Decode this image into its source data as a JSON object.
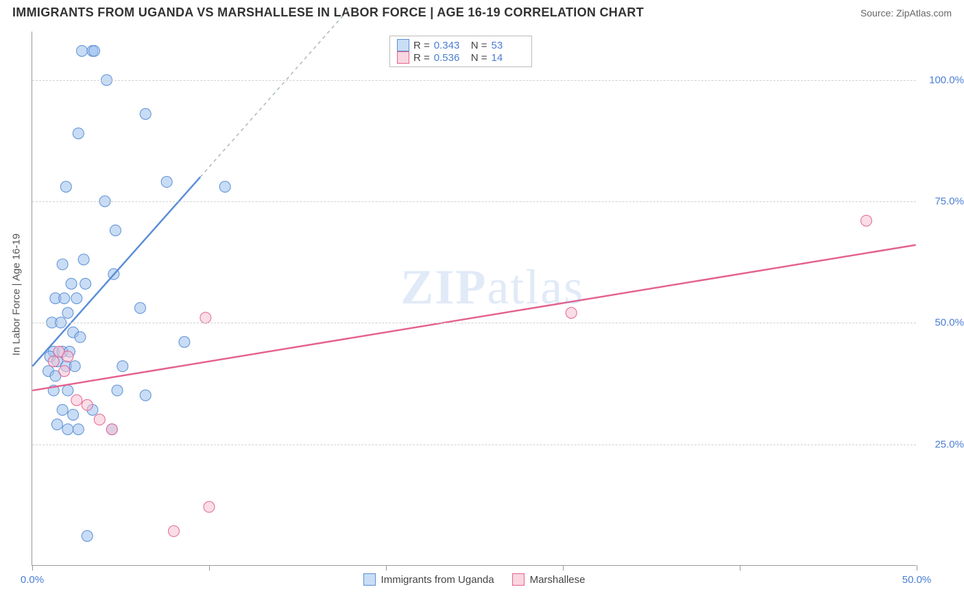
{
  "header": {
    "title": "IMMIGRANTS FROM UGANDA VS MARSHALLESE IN LABOR FORCE | AGE 16-19 CORRELATION CHART",
    "source_label": "Source: ZipAtlas.com"
  },
  "chart": {
    "type": "scatter",
    "y_axis_label": "In Labor Force | Age 16-19",
    "xlim": [
      0,
      50
    ],
    "ylim": [
      0,
      110
    ],
    "xticks": [
      0,
      10,
      20,
      30,
      40,
      50
    ],
    "xtick_labels": {
      "0": "0.0%",
      "50": "50.0%"
    },
    "yticks": [
      25,
      50,
      75,
      100
    ],
    "ytick_labels": {
      "25": "25.0%",
      "50": "50.0%",
      "75": "75.0%",
      "100": "100.0%"
    },
    "grid_color": "#d0d0d0",
    "axis_color": "#999999",
    "tick_label_color": "#4a7dd4",
    "background_color": "#ffffff",
    "marker_radius": 8,
    "marker_opacity": 0.55,
    "line_width": 2.5,
    "watermark_text": "ZIPatlas",
    "series": [
      {
        "id": "uganda",
        "label": "Immigrants from Uganda",
        "color_fill": "#9bc0ec",
        "color_stroke": "#5a8ed6",
        "swatch_fill": "#c9def5",
        "swatch_stroke": "#5a8ed6",
        "r": "0.343",
        "n": "53",
        "trend": {
          "x1": 0,
          "y1": 41,
          "x2": 9.5,
          "y2": 80,
          "dash_to_x": 18,
          "dash_to_y": 115
        },
        "points": [
          [
            2.8,
            106
          ],
          [
            3.4,
            106
          ],
          [
            3.5,
            106
          ],
          [
            4.2,
            100
          ],
          [
            6.4,
            93
          ],
          [
            2.6,
            89
          ],
          [
            1.9,
            78
          ],
          [
            4.1,
            75
          ],
          [
            7.6,
            79
          ],
          [
            10.9,
            78
          ],
          [
            4.7,
            69
          ],
          [
            2.9,
            63
          ],
          [
            4.6,
            60
          ],
          [
            1.7,
            62
          ],
          [
            2.2,
            58
          ],
          [
            3.0,
            58
          ],
          [
            1.3,
            55
          ],
          [
            1.8,
            55
          ],
          [
            2.5,
            55
          ],
          [
            2.0,
            52
          ],
          [
            6.1,
            53
          ],
          [
            1.1,
            50
          ],
          [
            1.6,
            50
          ],
          [
            2.3,
            48
          ],
          [
            2.7,
            47
          ],
          [
            1.2,
            44
          ],
          [
            1.7,
            44
          ],
          [
            2.1,
            44
          ],
          [
            1.0,
            43
          ],
          [
            1.4,
            42
          ],
          [
            1.9,
            41
          ],
          [
            2.4,
            41
          ],
          [
            0.9,
            40
          ],
          [
            1.3,
            39
          ],
          [
            8.6,
            46
          ],
          [
            5.1,
            41
          ],
          [
            1.2,
            36
          ],
          [
            2.0,
            36
          ],
          [
            4.8,
            36
          ],
          [
            6.4,
            35
          ],
          [
            1.7,
            32
          ],
          [
            2.3,
            31
          ],
          [
            3.4,
            32
          ],
          [
            1.4,
            29
          ],
          [
            2.0,
            28
          ],
          [
            2.6,
            28
          ],
          [
            4.5,
            28
          ],
          [
            3.1,
            6
          ]
        ]
      },
      {
        "id": "marshallese",
        "label": "Marshallese",
        "color_fill": "#f6c1d1",
        "color_stroke": "#e4628f",
        "swatch_fill": "#f9d6e0",
        "swatch_stroke": "#e4628f",
        "r": "0.536",
        "n": "14",
        "trend": {
          "x1": 0,
          "y1": 36,
          "x2": 50,
          "y2": 66
        },
        "points": [
          [
            47.2,
            71
          ],
          [
            30.5,
            52
          ],
          [
            9.8,
            51
          ],
          [
            1.5,
            44
          ],
          [
            2.0,
            43
          ],
          [
            1.2,
            42
          ],
          [
            1.8,
            40
          ],
          [
            2.5,
            34
          ],
          [
            3.1,
            33
          ],
          [
            3.8,
            30
          ],
          [
            4.5,
            28
          ],
          [
            8.0,
            7
          ],
          [
            10.0,
            12
          ]
        ]
      }
    ]
  },
  "legend_stats": {
    "r_label": "R =",
    "n_label": "N ="
  }
}
